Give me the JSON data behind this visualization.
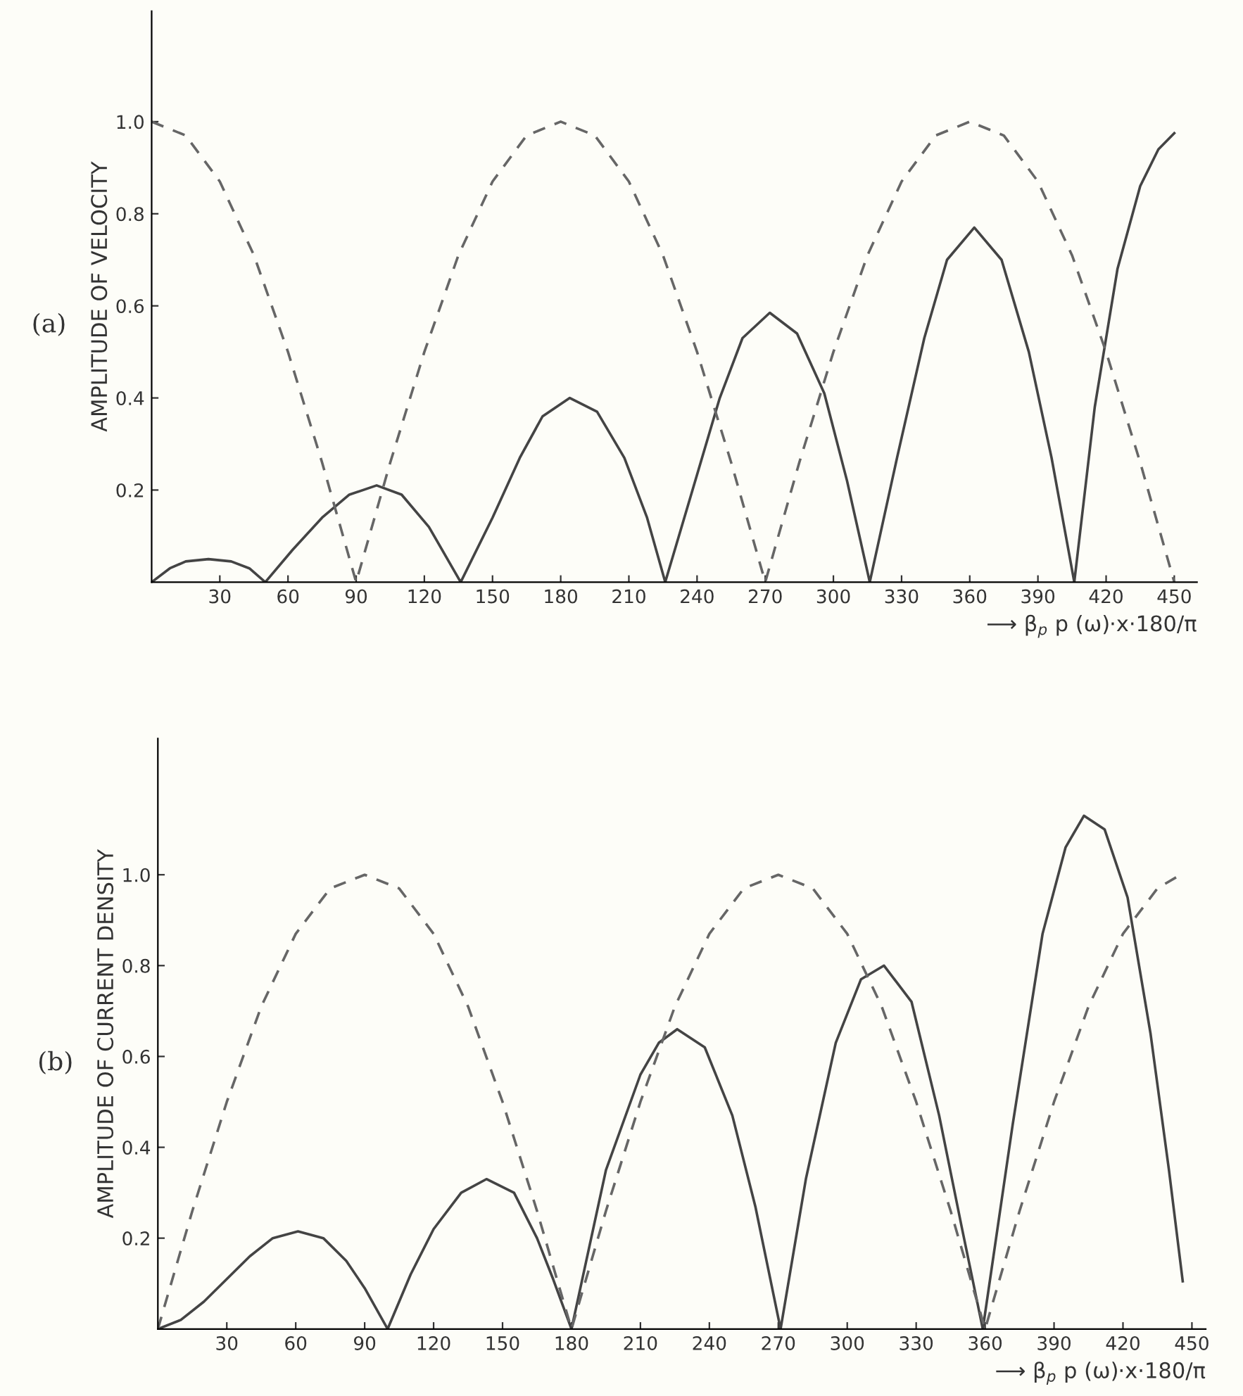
{
  "chart_data": [
    {
      "type": "line",
      "ylabel": "AMPLITUDE OF VELOCITY",
      "xlabel": "⟶ β$_{p}$ p (ω)·x·180/π",
      "annotations": [
        "(a)"
      ],
      "xlim": [
        0,
        460
      ],
      "ylim": [
        0,
        1.24
      ],
      "xticks": [
        30,
        60,
        90,
        120,
        150,
        180,
        210,
        240,
        270,
        300,
        330,
        360,
        390,
        420,
        450
      ],
      "yticks": [
        {
          "value": 0.2,
          "label": "0.2"
        },
        {
          "value": 0.4,
          "label": "0.4"
        },
        {
          "value": 0.6,
          "label": "0.6"
        },
        {
          "value": 0.8,
          "label": "0.8"
        },
        {
          "value": 1.0,
          "label": "1.0"
        }
      ],
      "grid": false,
      "legend": false,
      "series": [
        {
          "color": "#444444",
          "line_style": "solid",
          "x": [
            0,
            8,
            15,
            25,
            35,
            43,
            50,
            62,
            75,
            87,
            99,
            110,
            122,
            136,
            150,
            162,
            172,
            184,
            196,
            208,
            218,
            226,
            238,
            250,
            260,
            272,
            284,
            296,
            306,
            316,
            328,
            340,
            350,
            362,
            374,
            386,
            396,
            406,
            415,
            425,
            435,
            443,
            450
          ],
          "values": [
            0,
            0.03,
            0.045,
            0.05,
            0.045,
            0.03,
            0,
            0.07,
            0.14,
            0.19,
            0.21,
            0.19,
            0.12,
            0,
            0.14,
            0.27,
            0.36,
            0.4,
            0.37,
            0.27,
            0.14,
            0,
            0.2,
            0.4,
            0.53,
            0.585,
            0.54,
            0.41,
            0.22,
            0,
            0.27,
            0.53,
            0.7,
            0.77,
            0.7,
            0.5,
            0.27,
            0,
            0.38,
            0.68,
            0.86,
            0.94,
            0.975
          ]
        },
        {
          "color": "#666666",
          "line_style": "dashed",
          "x": [
            0,
            15,
            30,
            45,
            60,
            75,
            90,
            105,
            120,
            135,
            150,
            165,
            180,
            195,
            210,
            225,
            240,
            255,
            270,
            285,
            300,
            315,
            330,
            345,
            360,
            375,
            390,
            405,
            420,
            435,
            450
          ],
          "values": [
            1.0,
            0.97,
            0.87,
            0.71,
            0.5,
            0.26,
            0,
            0.26,
            0.5,
            0.71,
            0.87,
            0.97,
            1.0,
            0.97,
            0.87,
            0.71,
            0.5,
            0.26,
            0,
            0.26,
            0.5,
            0.71,
            0.87,
            0.97,
            1.0,
            0.97,
            0.87,
            0.71,
            0.5,
            0.26,
            0
          ]
        }
      ]
    },
    {
      "type": "line",
      "ylabel": "AMPLITUDE OF CURRENT DENSITY",
      "xlabel": "⟶ β$_{p}$ p (ω)·x·180/π",
      "annotations": [
        "(b)"
      ],
      "xlim": [
        0,
        456
      ],
      "ylim": [
        0,
        1.3
      ],
      "xticks": [
        30,
        60,
        90,
        120,
        150,
        180,
        210,
        240,
        270,
        300,
        330,
        360,
        390,
        420,
        450
      ],
      "yticks": [
        {
          "value": 0.2,
          "label": "0.2"
        },
        {
          "value": 0.4,
          "label": "0.4"
        },
        {
          "value": 0.6,
          "label": "0.6"
        },
        {
          "value": 0.8,
          "label": "0.8"
        },
        {
          "value": 1.0,
          "label": "1.0"
        }
      ],
      "grid": false,
      "legend": false,
      "series": [
        {
          "color": "#444444",
          "line_style": "solid",
          "x": [
            0,
            10,
            20,
            30,
            40,
            50,
            61,
            72,
            82,
            90,
            100,
            110,
            120,
            132,
            143,
            155,
            165,
            172,
            180,
            195,
            210,
            218,
            226,
            238,
            250,
            260,
            271,
            282,
            295,
            306,
            316,
            328,
            340,
            350,
            359,
            372,
            385,
            395,
            403,
            412,
            422,
            432,
            440,
            446
          ],
          "values": [
            0,
            0.02,
            0.06,
            0.11,
            0.16,
            0.2,
            0.215,
            0.2,
            0.15,
            0.09,
            0,
            0.12,
            0.22,
            0.3,
            0.33,
            0.3,
            0.2,
            0.11,
            0,
            0.35,
            0.56,
            0.63,
            0.66,
            0.62,
            0.47,
            0.27,
            0,
            0.33,
            0.63,
            0.77,
            0.8,
            0.72,
            0.47,
            0.22,
            0,
            0.45,
            0.87,
            1.06,
            1.13,
            1.1,
            0.95,
            0.65,
            0.35,
            0.105
          ]
        },
        {
          "color": "#666666",
          "line_style": "dashed",
          "x": [
            0,
            15,
            30,
            45,
            60,
            75,
            90,
            105,
            120,
            135,
            150,
            165,
            180,
            195,
            210,
            225,
            240,
            255,
            270,
            285,
            300,
            315,
            330,
            345,
            360,
            375,
            390,
            405,
            420,
            435,
            445
          ],
          "values": [
            0,
            0.26,
            0.5,
            0.71,
            0.87,
            0.97,
            1.0,
            0.97,
            0.87,
            0.71,
            0.5,
            0.26,
            0,
            0.26,
            0.5,
            0.71,
            0.87,
            0.97,
            1.0,
            0.97,
            0.87,
            0.71,
            0.5,
            0.26,
            0,
            0.26,
            0.5,
            0.71,
            0.87,
            0.97,
            1.0
          ]
        }
      ]
    }
  ]
}
